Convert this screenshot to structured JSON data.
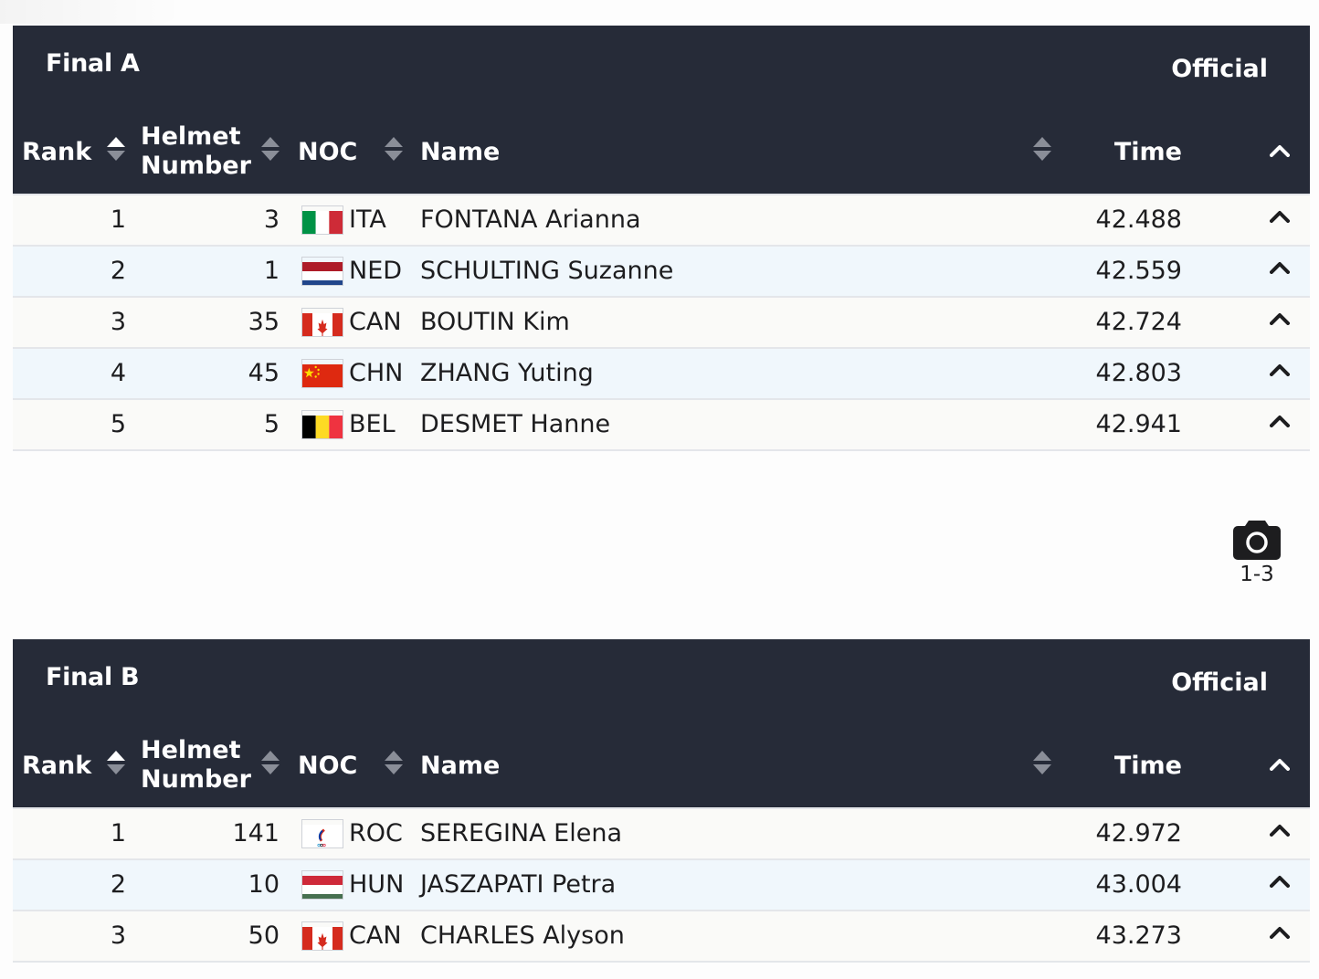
{
  "final_a": {
    "title": "Final A",
    "status": "Official",
    "headers": {
      "rank": "Rank",
      "helmet": "Helmet Number",
      "noc": "NOC",
      "name": "Name",
      "time": "Time"
    },
    "rows": [
      {
        "rank": "1",
        "helmet": "3",
        "noc": "ITA",
        "name": "FONTANA Arianna",
        "time": "42.488"
      },
      {
        "rank": "2",
        "helmet": "1",
        "noc": "NED",
        "name": "SCHULTING Suzanne",
        "time": "42.559"
      },
      {
        "rank": "3",
        "helmet": "35",
        "noc": "CAN",
        "name": "BOUTIN Kim",
        "time": "42.724"
      },
      {
        "rank": "4",
        "helmet": "45",
        "noc": "CHN",
        "name": "ZHANG Yuting",
        "time": "42.803"
      },
      {
        "rank": "5",
        "helmet": "5",
        "noc": "BEL",
        "name": "DESMET Hanne",
        "time": "42.941"
      }
    ]
  },
  "photo": {
    "icon": "camera-icon",
    "label": "1-3"
  },
  "final_b": {
    "title": "Final B",
    "status": "Official",
    "headers": {
      "rank": "Rank",
      "helmet": "Helmet Number",
      "noc": "NOC",
      "name": "Name",
      "time": "Time"
    },
    "rows": [
      {
        "rank": "1",
        "helmet": "141",
        "noc": "ROC",
        "name": "SEREGINA Elena",
        "time": "42.972"
      },
      {
        "rank": "2",
        "helmet": "10",
        "noc": "HUN",
        "name": "JASZAPATI Petra",
        "time": "43.004"
      },
      {
        "rank": "3",
        "helmet": "50",
        "noc": "CAN",
        "name": "CHARLES Alyson",
        "time": "43.273"
      }
    ]
  },
  "colors": {
    "header_bg": "#262b38",
    "row_alt": "#f0f7fc",
    "row_base": "#fafaf8"
  }
}
